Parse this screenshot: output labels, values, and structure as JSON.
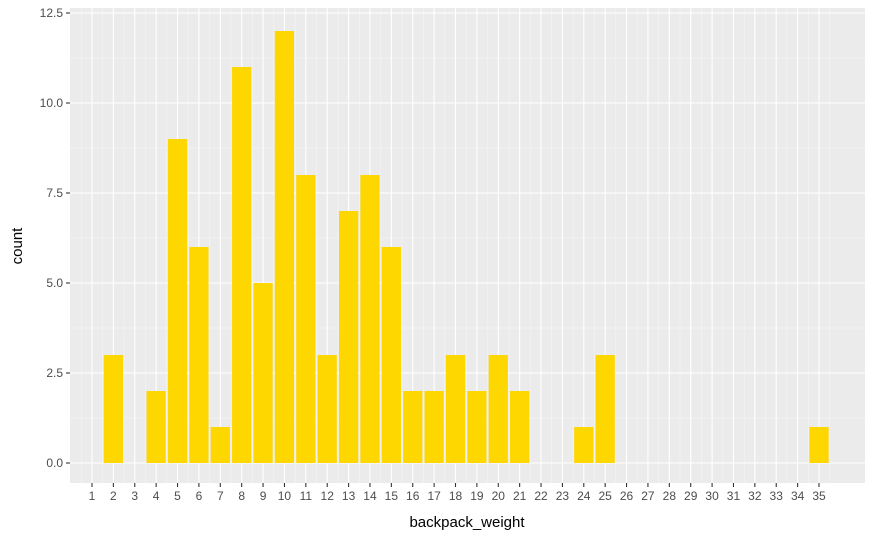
{
  "chart_data": {
    "type": "bar",
    "xlabel": "backpack_weight",
    "ylabel": "count",
    "categories": [
      "1",
      "2",
      "3",
      "4",
      "5",
      "6",
      "7",
      "8",
      "9",
      "10",
      "11",
      "12",
      "13",
      "14",
      "15",
      "16",
      "17",
      "18",
      "19",
      "20",
      "21",
      "22",
      "23",
      "24",
      "25",
      "26",
      "27",
      "28",
      "29",
      "30",
      "31",
      "32",
      "33",
      "34",
      "35"
    ],
    "values": [
      0,
      3,
      0,
      2,
      9,
      6,
      1,
      11,
      5,
      12,
      8,
      3,
      7,
      8,
      6,
      2,
      2,
      3,
      2,
      3,
      2,
      0,
      0,
      1,
      3,
      0,
      0,
      0,
      0,
      0,
      0,
      0,
      0,
      0,
      1
    ],
    "ylim": [
      0,
      12.5
    ],
    "yticks": [
      "0.0",
      "2.5",
      "5.0",
      "7.5",
      "10.0",
      "12.5"
    ],
    "ytick_values": [
      0,
      2.5,
      5,
      7.5,
      10,
      12.5
    ],
    "grid": true,
    "colors": {
      "bar": "#FFD700",
      "panel": "#EBEBEB",
      "grid_major": "#FFFFFF",
      "grid_minor": "#F5F5F5",
      "tick_text": "#4D4D4D",
      "axis_title": "#000000"
    }
  }
}
